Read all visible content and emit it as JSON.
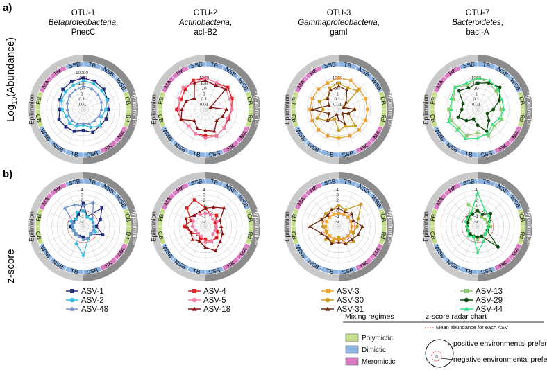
{
  "figure": {
    "panel_a": "a)",
    "panel_b": "b)",
    "ylabel_a": "Log",
    "ylabel_a_sub": "10",
    "ylabel_a_rest": "(Abundance)",
    "ylabel_b": "z-score"
  },
  "ring": {
    "upper_labels": [
      "FB",
      "MA",
      "HK",
      "SSB",
      "TB",
      "NSB",
      "WSB",
      "CB"
    ],
    "lower_labels": [
      "FB",
      "MA",
      "HK",
      "SSB",
      "TB",
      "NSB",
      "WSB",
      "CB"
    ],
    "left_title": "Epilimnion",
    "right_title": "Hypolimnion"
  },
  "colors": {
    "polymictic": "#c5de8b",
    "dimictic": "#8db3e2",
    "meromictic": "#d87bc0",
    "epi_band": "#c9c9c9",
    "hypo_band": "#8c8c8c",
    "mean_line": "#e04040"
  },
  "otus": [
    {
      "name": "OTU-1",
      "taxon": "Betaproteobacteria",
      "lineage": "PnecC"
    },
    {
      "name": "OTU-2",
      "taxon": "Actinobacteria",
      "lineage": "acI-B2"
    },
    {
      "name": "OTU-3",
      "taxon": "Gammaproteobacteria",
      "lineage": "gamI"
    },
    {
      "name": "OTU-7",
      "taxon": "Bacteroidetes",
      "lineage": "bacI-A"
    }
  ],
  "legend": {
    "mixing_title": "Mixing regimes",
    "radar_title": "z-score radar chart",
    "mean_note": "Mean abundance  for each ASV",
    "polymictic": "Polymictic",
    "dimictic": "Dimictic",
    "meromictic": "Meromictic",
    "positive": "positive environmental preference",
    "negative": "negative environmental preference",
    "zero_tick": "0"
  },
  "chart_data": [
    {
      "type": "radar",
      "panel": "a",
      "otu": "OTU-1",
      "title": "OTU-1 Betaproteobacteria, PnecC",
      "axis_scale": "log10",
      "rlim": [
        0.001,
        10000
      ],
      "tick_labels": [
        "10000",
        "1000",
        "100",
        "10",
        "1",
        "0.1",
        "0.01"
      ],
      "categories": [
        "U-FB",
        "U-MA",
        "U-HK",
        "U-SSB",
        "U-TB",
        "U-NSB",
        "U-WSB",
        "U-CB",
        "L-CB",
        "L-WSB",
        "L-NSB",
        "L-TB",
        "L-SSB",
        "L-HK",
        "L-MA",
        "L-FB"
      ],
      "series": [
        {
          "name": "ASV-1",
          "color": "#1f2a7a",
          "marker": "square",
          "values": [
            1000,
            600,
            300,
            100,
            60,
            50,
            30,
            50,
            10,
            30,
            50,
            100,
            30,
            60,
            300,
            600
          ]
        },
        {
          "name": "ASV-2",
          "color": "#33bde0",
          "marker": "circle",
          "values": [
            300,
            200,
            100,
            80,
            20,
            5,
            30,
            5,
            1,
            3,
            5,
            3,
            10,
            30,
            60,
            100
          ]
        },
        {
          "name": "ASV-48",
          "color": "#7090c8",
          "marker": "triangle",
          "values": [
            30,
            20,
            10,
            5,
            3,
            2,
            1,
            1,
            0.5,
            1,
            1,
            1,
            1,
            2,
            5,
            10
          ]
        }
      ]
    },
    {
      "type": "radar",
      "panel": "a",
      "otu": "OTU-2",
      "title": "OTU-2 Actinobacteria, acI-B2",
      "axis_scale": "log10",
      "rlim": [
        0.001,
        10000
      ],
      "tick_labels": [
        "1000",
        "100",
        "10",
        "1",
        "0.1",
        "0.01"
      ],
      "categories": [
        "U-FB",
        "U-MA",
        "U-HK",
        "U-SSB",
        "U-TB",
        "U-NSB",
        "U-WSB",
        "U-CB",
        "L-CB",
        "L-WSB",
        "L-NSB",
        "L-TB",
        "L-SSB",
        "L-HK",
        "L-MA",
        "L-FB"
      ],
      "series": [
        {
          "name": "ASV-4",
          "color": "#e02020",
          "marker": "square",
          "values": [
            1000,
            300,
            1000,
            300,
            100,
            50,
            100,
            300,
            100,
            100,
            30,
            100,
            300,
            100,
            300,
            1000
          ]
        },
        {
          "name": "ASV-5",
          "color": "#f07fa8",
          "marker": "circle",
          "values": [
            1000,
            300,
            300,
            100,
            100,
            30,
            100,
            300,
            300,
            100,
            30,
            100,
            100,
            300,
            1000,
            300
          ]
        },
        {
          "name": "ASV-18",
          "color": "#8b1010",
          "marker": "triangle",
          "values": [
            300,
            100,
            300,
            0.01,
            10,
            3,
            1,
            30,
            10,
            10,
            1,
            100,
            30,
            10,
            1,
            300
          ]
        }
      ]
    },
    {
      "type": "radar",
      "panel": "a",
      "otu": "OTU-3",
      "title": "OTU-3 Gammaproteobacteria, gamI",
      "axis_scale": "log10",
      "rlim": [
        0.001,
        10000
      ],
      "tick_labels": [
        "1000",
        "100",
        "10",
        "1",
        "0.1",
        "0.01"
      ],
      "categories": [
        "U-FB",
        "U-MA",
        "U-HK",
        "U-SSB",
        "U-TB",
        "U-NSB",
        "U-WSB",
        "U-CB",
        "L-CB",
        "L-WSB",
        "L-NSB",
        "L-TB",
        "L-SSB",
        "L-HK",
        "L-MA",
        "L-FB"
      ],
      "series": [
        {
          "name": "ASV-3",
          "color": "#f0a030",
          "marker": "square",
          "values": [
            1000,
            1000,
            300,
            300,
            300,
            300,
            300,
            300,
            300,
            300,
            300,
            300,
            300,
            300,
            300,
            300
          ]
        },
        {
          "name": "ASV-30",
          "color": "#c89a20",
          "marker": "circle",
          "values": [
            100,
            30,
            100,
            0.01,
            1,
            0.1,
            30,
            3,
            10,
            0.1,
            1,
            30,
            1,
            10,
            1,
            30
          ]
        },
        {
          "name": "ASV-31",
          "color": "#6b2a10",
          "marker": "triangle",
          "values": [
            30,
            10,
            0.1,
            0.01,
            1,
            0.1,
            0.01,
            1,
            0.1,
            0.01,
            1,
            0.1,
            100,
            0.1,
            1,
            10
          ]
        }
      ]
    },
    {
      "type": "radar",
      "panel": "a",
      "otu": "OTU-7",
      "title": "OTU-7 Bacteroidetes, bacI-A",
      "axis_scale": "log10",
      "rlim": [
        0.001,
        10000
      ],
      "tick_labels": [
        "1000",
        "100",
        "10",
        "1",
        "0.1",
        "0.01"
      ],
      "categories": [
        "U-FB",
        "U-MA",
        "U-HK",
        "U-SSB",
        "U-TB",
        "U-NSB",
        "U-WSB",
        "U-CB",
        "L-CB",
        "L-WSB",
        "L-NSB",
        "L-TB",
        "L-SSB",
        "L-HK",
        "L-MA",
        "L-FB"
      ],
      "series": [
        {
          "name": "ASV-13",
          "color": "#90c870",
          "marker": "square",
          "values": [
            1000,
            300,
            100,
            30,
            30,
            100,
            30,
            300,
            30,
            300,
            100,
            300,
            300,
            100,
            1000,
            100
          ]
        },
        {
          "name": "ASV-29",
          "color": "#0f4a10",
          "marker": "circle",
          "values": [
            100,
            300,
            1000,
            30,
            1,
            0.1,
            1,
            30,
            1,
            0.1,
            1,
            10,
            1,
            1,
            100,
            30
          ]
        },
        {
          "name": "ASV-44",
          "color": "#30e080",
          "marker": "triangle",
          "values": [
            1000,
            1000,
            300,
            100,
            100,
            30,
            10,
            100,
            300,
            1000,
            300,
            1000,
            100,
            300,
            1000,
            300
          ]
        }
      ]
    },
    {
      "type": "radar",
      "panel": "b",
      "otu": "OTU-1",
      "axis_scale": "linear",
      "rlim": [
        -3,
        4
      ],
      "tick_labels": [
        "4",
        "3",
        "2",
        "1",
        "0",
        "-1",
        "-2"
      ],
      "categories": [
        "U-FB",
        "U-MA",
        "U-HK",
        "U-SSB",
        "U-TB",
        "U-NSB",
        "U-WSB",
        "U-CB",
        "L-CB",
        "L-WSB",
        "L-NSB",
        "L-TB",
        "L-SSB",
        "L-HK",
        "L-MA",
        "L-FB"
      ],
      "series": [
        {
          "name": "ASV-1",
          "color": "#1f2a7a",
          "marker": "square",
          "values": [
            1.5,
            -1,
            2,
            0.5,
            -0.5,
            1,
            -1,
            -0.5,
            -1,
            -1,
            -1,
            -1,
            -0.5,
            -1,
            -1,
            -0.5
          ]
        },
        {
          "name": "ASV-2",
          "color": "#33bde0",
          "marker": "circle",
          "values": [
            0,
            -1,
            -1,
            -1,
            -1,
            -0.5,
            -1,
            -0.5,
            2.5,
            0.5,
            -1,
            -1,
            -1,
            -0.5,
            -1,
            0
          ]
        },
        {
          "name": "ASV-48",
          "color": "#7090c8",
          "marker": "triangle",
          "values": [
            1,
            2,
            -0.5,
            -1,
            -1,
            -1,
            -1,
            -0.5,
            -0.5,
            -1,
            -1,
            -1,
            -1,
            -1,
            2,
            1.5
          ]
        }
      ]
    },
    {
      "type": "radar",
      "panel": "b",
      "otu": "OTU-2",
      "axis_scale": "linear",
      "rlim": [
        -3,
        4
      ],
      "tick_labels": [
        "4",
        "3",
        "2",
        "1",
        "0",
        "-1",
        "-2"
      ],
      "categories": [
        "U-FB",
        "U-MA",
        "U-HK",
        "U-SSB",
        "U-TB",
        "U-NSB",
        "U-WSB",
        "U-CB",
        "L-CB",
        "L-WSB",
        "L-NSB",
        "L-TB",
        "L-SSB",
        "L-HK",
        "L-MA",
        "L-FB"
      ],
      "series": [
        {
          "name": "ASV-4",
          "color": "#e02020",
          "marker": "square",
          "values": [
            0.5,
            -0.5,
            0,
            -1,
            -1,
            -0.5,
            0,
            0,
            -0.5,
            -0.5,
            -1,
            0,
            1,
            0,
            2,
            2.5
          ]
        },
        {
          "name": "ASV-5",
          "color": "#f07fa8",
          "marker": "circle",
          "values": [
            -0.5,
            -0.5,
            -1,
            -0.5,
            -1,
            -1,
            -1,
            0,
            0,
            -1,
            -1,
            -1,
            -0.5,
            -0.5,
            0,
            -0.5
          ]
        },
        {
          "name": "ASV-18",
          "color": "#8b1010",
          "marker": "triangle",
          "values": [
            0.5,
            1,
            2,
            0,
            0,
            0.5,
            1,
            2,
            1,
            0,
            0.5,
            0,
            0.5,
            1,
            0,
            0
          ]
        }
      ]
    },
    {
      "type": "radar",
      "panel": "b",
      "otu": "OTU-3",
      "axis_scale": "linear",
      "rlim": [
        -3,
        4
      ],
      "tick_labels": [
        "4",
        "3",
        "2",
        "1",
        "0",
        "-1",
        "-2"
      ],
      "categories": [
        "U-FB",
        "U-MA",
        "U-HK",
        "U-SSB",
        "U-TB",
        "U-NSB",
        "U-WSB",
        "U-CB",
        "L-CB",
        "L-WSB",
        "L-NSB",
        "L-TB",
        "L-SSB",
        "L-HK",
        "L-MA",
        "L-FB"
      ],
      "series": [
        {
          "name": "ASV-3",
          "color": "#f0a030",
          "marker": "square",
          "values": [
            -0.5,
            -0.5,
            -0.5,
            -0.5,
            -0.5,
            -0.5,
            -0.5,
            -0.5,
            -0.5,
            -0.5,
            -0.5,
            -0.5,
            -0.5,
            -0.5,
            -0.5,
            -0.5
          ]
        },
        {
          "name": "ASV-30",
          "color": "#c89a20",
          "marker": "circle",
          "values": [
            1,
            0.5,
            3,
            1,
            0.5,
            0,
            1,
            0.5,
            -1,
            0,
            0.5,
            -0.5,
            0,
            0.5,
            0.5,
            0.5
          ]
        },
        {
          "name": "ASV-31",
          "color": "#6b2a10",
          "marker": "triangle",
          "values": [
            0.5,
            0,
            0.5,
            0,
            1.5,
            1,
            0.5,
            0.5,
            0,
            0.5,
            0,
            0.5,
            2.5,
            0.5,
            0,
            0.5
          ]
        }
      ]
    },
    {
      "type": "radar",
      "panel": "b",
      "otu": "OTU-7",
      "axis_scale": "linear",
      "rlim": [
        -3,
        4
      ],
      "tick_labels": [
        "4",
        "3",
        "2",
        "1",
        "0",
        "-1",
        "-2"
      ],
      "categories": [
        "U-FB",
        "U-MA",
        "U-HK",
        "U-SSB",
        "U-TB",
        "U-NSB",
        "U-WSB",
        "U-CB",
        "L-CB",
        "L-WSB",
        "L-NSB",
        "L-TB",
        "L-SSB",
        "L-HK",
        "L-MA",
        "L-FB"
      ],
      "series": [
        {
          "name": "ASV-13",
          "color": "#90c870",
          "marker": "square",
          "values": [
            0,
            -1,
            -1,
            -1,
            -0.5,
            -1,
            -1,
            -1,
            -0.5,
            -1,
            -1,
            -1,
            -1,
            -1,
            -1,
            1.5
          ]
        },
        {
          "name": "ASV-29",
          "color": "#0f4a10",
          "marker": "circle",
          "values": [
            0,
            -0.5,
            0.5,
            -0.5,
            -1,
            -1,
            2.5,
            -1,
            -1,
            -1,
            -1,
            -1,
            -1,
            -1,
            -0.5,
            -0.5
          ]
        },
        {
          "name": "ASV-44",
          "color": "#30e080",
          "marker": "triangle",
          "values": [
            3.5,
            0.5,
            0,
            -0.5,
            -1,
            -1,
            -1,
            0,
            2,
            -1,
            -0.5,
            -1,
            -1,
            -0.5,
            -0.5,
            0
          ]
        }
      ]
    }
  ]
}
